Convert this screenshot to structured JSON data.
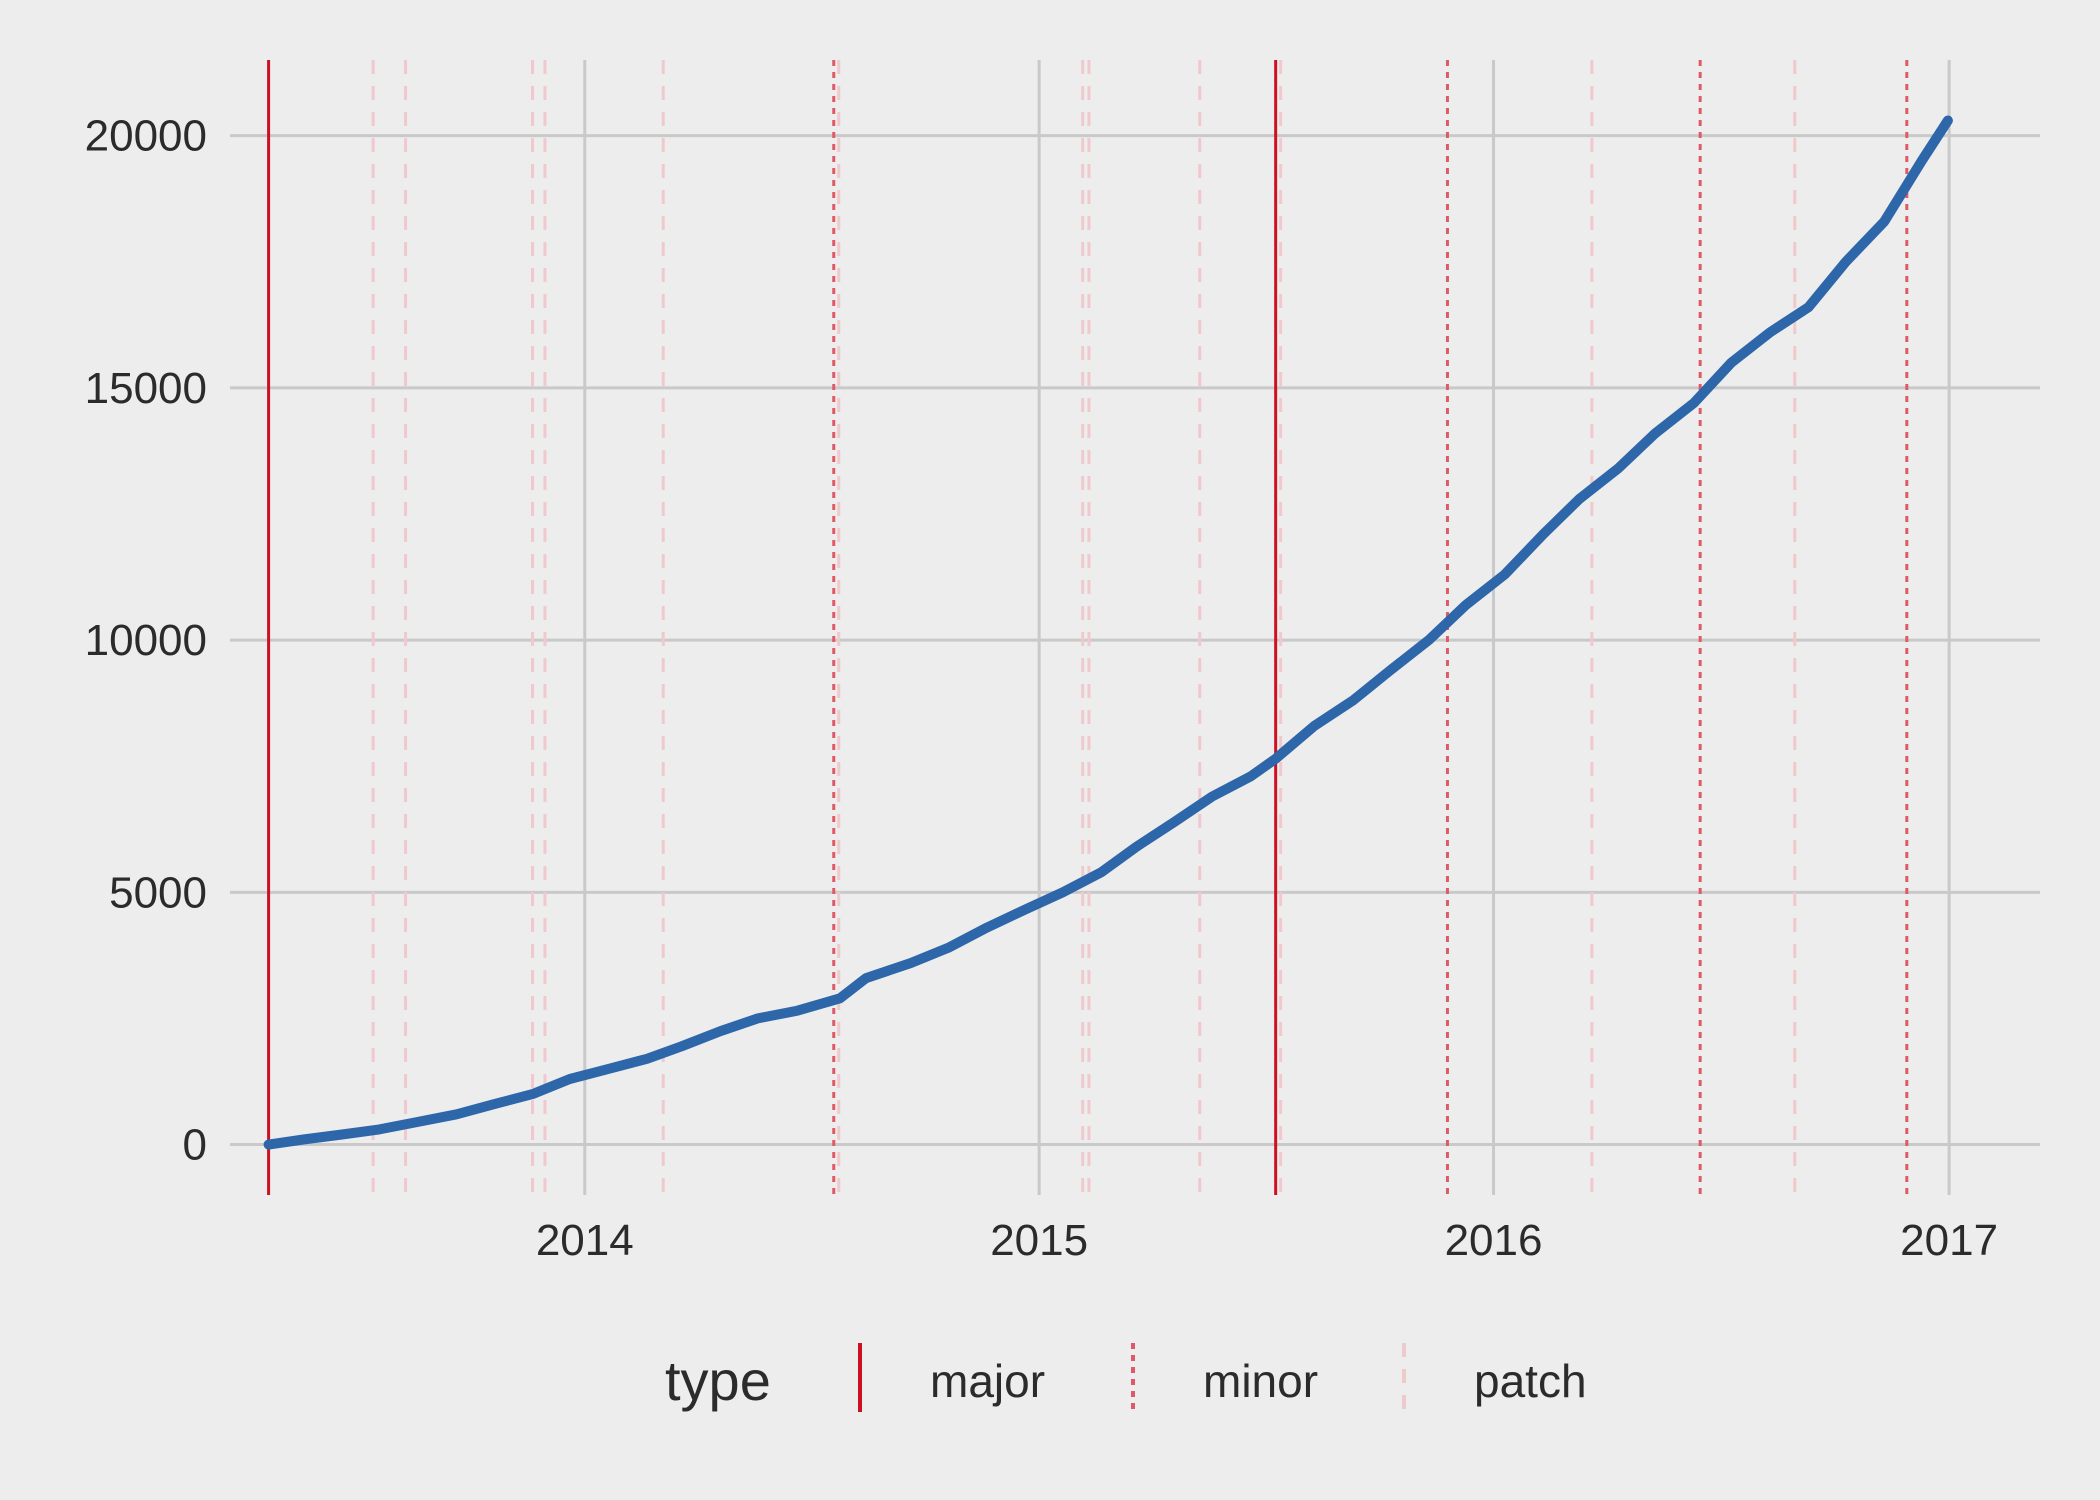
{
  "colors": {
    "background": "#ededed",
    "grid": "#c9c9c9",
    "series": "#2e66aa",
    "major": "#cc1122",
    "minor": "#e05a66",
    "patch": "#f0c9cd"
  },
  "chart_data": {
    "type": "line",
    "title": "",
    "xlabel": "",
    "ylabel": "",
    "x_axis": "date",
    "xlim": [
      "2013-03-22",
      "2017-03-15"
    ],
    "ylim": [
      -1000,
      21500
    ],
    "x_ticks": [
      {
        "date": "2014-01-01",
        "label": "2014"
      },
      {
        "date": "2015-01-01",
        "label": "2015"
      },
      {
        "date": "2016-01-01",
        "label": "2016"
      },
      {
        "date": "2017-01-01",
        "label": "2017"
      }
    ],
    "y_ticks": [
      {
        "value": 0,
        "label": "0"
      },
      {
        "value": 5000,
        "label": "5000"
      },
      {
        "value": 10000,
        "label": "10000"
      },
      {
        "value": 15000,
        "label": "15000"
      },
      {
        "value": 20000,
        "label": "20000"
      }
    ],
    "grid": true,
    "series": [
      {
        "points": [
          [
            "2013-04-22",
            0
          ],
          [
            "2013-05-20",
            100
          ],
          [
            "2013-06-20",
            200
          ],
          [
            "2013-07-20",
            300
          ],
          [
            "2013-08-20",
            450
          ],
          [
            "2013-09-20",
            600
          ],
          [
            "2013-10-20",
            800
          ],
          [
            "2013-11-20",
            1000
          ],
          [
            "2013-12-20",
            1300
          ],
          [
            "2014-01-20",
            1500
          ],
          [
            "2014-02-20",
            1700
          ],
          [
            "2014-03-20",
            1950
          ],
          [
            "2014-04-20",
            2250
          ],
          [
            "2014-05-20",
            2500
          ],
          [
            "2014-06-20",
            2650
          ],
          [
            "2014-07-25",
            2900
          ],
          [
            "2014-08-15",
            3300
          ],
          [
            "2014-09-20",
            3600
          ],
          [
            "2014-10-20",
            3900
          ],
          [
            "2014-11-20",
            4300
          ],
          [
            "2014-12-20",
            4650
          ],
          [
            "2015-01-20",
            5000
          ],
          [
            "2015-02-20",
            5400
          ],
          [
            "2015-03-20",
            5900
          ],
          [
            "2015-04-20",
            6400
          ],
          [
            "2015-05-20",
            6900
          ],
          [
            "2015-06-20",
            7300
          ],
          [
            "2015-07-10",
            7650
          ],
          [
            "2015-08-10",
            8300
          ],
          [
            "2015-09-10",
            8800
          ],
          [
            "2015-10-10",
            9400
          ],
          [
            "2015-11-10",
            10000
          ],
          [
            "2015-12-10",
            10700
          ],
          [
            "2016-01-10",
            11300
          ],
          [
            "2016-02-10",
            12100
          ],
          [
            "2016-03-10",
            12800
          ],
          [
            "2016-04-10",
            13400
          ],
          [
            "2016-05-10",
            14100
          ],
          [
            "2016-06-10",
            14700
          ],
          [
            "2016-07-10",
            15500
          ],
          [
            "2016-08-10",
            16100
          ],
          [
            "2016-09-10",
            16600
          ],
          [
            "2016-10-10",
            17500
          ],
          [
            "2016-11-10",
            18300
          ],
          [
            "2016-12-10",
            19500
          ],
          [
            "2016-12-31",
            20300
          ]
        ]
      }
    ],
    "releases": [
      {
        "date": "2013-04-22",
        "type": "major"
      },
      {
        "date": "2013-07-15",
        "type": "patch"
      },
      {
        "date": "2013-08-10",
        "type": "patch"
      },
      {
        "date": "2013-11-20",
        "type": "patch"
      },
      {
        "date": "2013-11-30",
        "type": "patch"
      },
      {
        "date": "2014-03-05",
        "type": "patch"
      },
      {
        "date": "2014-07-20",
        "type": "minor"
      },
      {
        "date": "2014-07-24",
        "type": "patch"
      },
      {
        "date": "2015-02-05",
        "type": "patch"
      },
      {
        "date": "2015-02-10",
        "type": "patch"
      },
      {
        "date": "2015-05-10",
        "type": "patch"
      },
      {
        "date": "2015-07-10",
        "type": "major"
      },
      {
        "date": "2015-07-14",
        "type": "patch"
      },
      {
        "date": "2015-11-25",
        "type": "minor"
      },
      {
        "date": "2016-03-20",
        "type": "patch"
      },
      {
        "date": "2016-06-15",
        "type": "minor"
      },
      {
        "date": "2016-08-30",
        "type": "patch"
      },
      {
        "date": "2016-11-28",
        "type": "minor"
      }
    ],
    "legend": {
      "title": "type",
      "placement": "bottom",
      "items": [
        {
          "key": "major",
          "label": "major"
        },
        {
          "key": "minor",
          "label": "minor"
        },
        {
          "key": "patch",
          "label": "patch"
        }
      ]
    }
  }
}
